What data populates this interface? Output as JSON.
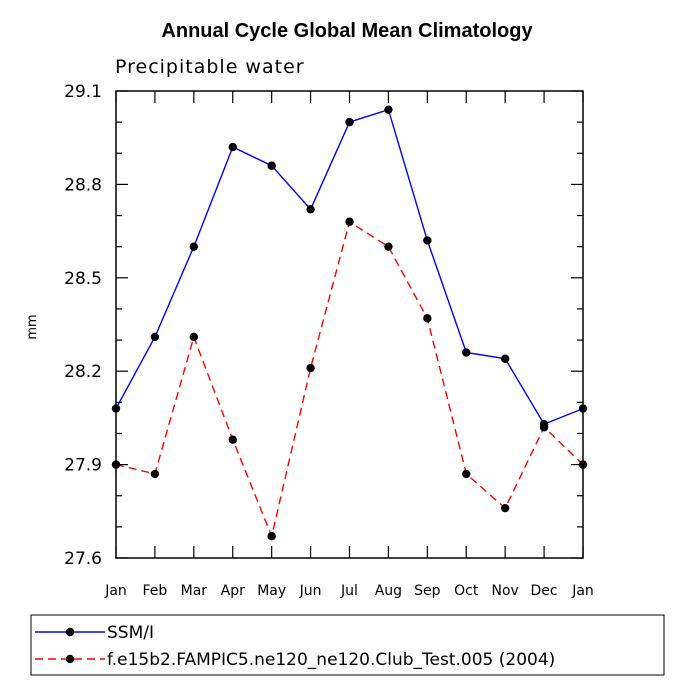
{
  "chart_data": {
    "type": "line",
    "title": "Annual Cycle Global Mean Climatology",
    "subtitle": "Precipitable water",
    "xlabel": "",
    "ylabel": "mm",
    "categories": [
      "Jan",
      "Feb",
      "Mar",
      "Apr",
      "May",
      "Jun",
      "Jul",
      "Aug",
      "Sep",
      "Oct",
      "Nov",
      "Dec",
      "Jan"
    ],
    "ylim": [
      27.6,
      29.1
    ],
    "yticks": [
      "27.6",
      "27.9",
      "28.2",
      "28.5",
      "28.8",
      "29.1"
    ],
    "series": [
      {
        "name": "SSM/I",
        "color": "#0000ff",
        "dash": "solid",
        "values": [
          28.08,
          28.31,
          28.6,
          28.92,
          28.86,
          28.72,
          29.0,
          29.04,
          28.62,
          28.26,
          28.24,
          28.03,
          28.08
        ]
      },
      {
        "name": "f.e15b2.FAMPIC5.ne120_ne120.Club_Test.005 (2004)",
        "color": "#ff0000",
        "dash": "dashed",
        "values": [
          27.9,
          27.87,
          28.31,
          27.98,
          27.67,
          28.21,
          28.68,
          28.6,
          28.37,
          27.87,
          27.76,
          28.02,
          27.9
        ]
      }
    ]
  }
}
